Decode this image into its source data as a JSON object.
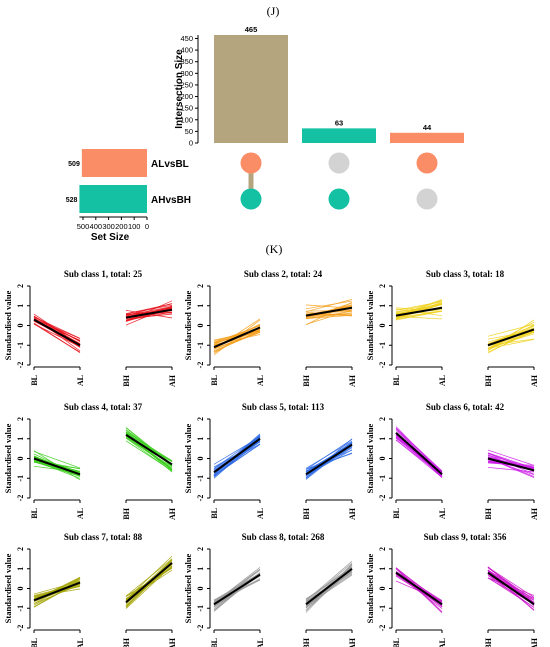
{
  "panel_labels": {
    "upset": "(J)",
    "subclasses": "(K)"
  },
  "colors": {
    "intersection_bars": [
      "#b5a57e",
      "#14c2a3",
      "#fa8c66"
    ],
    "set_alvsbl": "#fa8c66",
    "set_ahvsbh": "#14c2a3",
    "dot_inactive": "#d3d3d3",
    "connector": "#b5a57e",
    "mean_line": "#000000"
  },
  "chart_data": [
    {
      "type": "bar",
      "name": "upset-intersections",
      "categories": [
        "ALvsBL & AHvsBH",
        "AHvsBH only",
        "ALvsBL only"
      ],
      "values": [
        465,
        63,
        44
      ],
      "data_labels": [
        "465",
        "63",
        "44"
      ],
      "ylabel": "Intersection Size",
      "ylim": [
        0,
        465
      ],
      "yticks": [
        0,
        50,
        100,
        150,
        200,
        250,
        300,
        350,
        400,
        450
      ],
      "membership": [
        {
          "ALvsBL": true,
          "AHvsBH": true
        },
        {
          "ALvsBL": false,
          "AHvsBH": true
        },
        {
          "ALvsBL": true,
          "AHvsBH": false
        }
      ]
    },
    {
      "type": "bar",
      "name": "upset-set-sizes",
      "orientation": "horizontal",
      "categories": [
        "ALvsBL",
        "AHvsBH"
      ],
      "values": [
        509,
        528
      ],
      "data_labels": [
        "509",
        "528"
      ],
      "xlabel": "Set Size",
      "xticks": [
        "500",
        "400",
        "300",
        "200",
        "100",
        "0"
      ],
      "xlim": [
        0,
        528
      ]
    },
    {
      "type": "line",
      "name": "sub-classes",
      "x": [
        "BL",
        "AL",
        "BH",
        "AH"
      ],
      "ylabel": "Standardised value",
      "ylim": [
        -2,
        2
      ],
      "yticks": [
        "-2",
        "-1",
        "0",
        "1",
        "2"
      ],
      "panels": [
        {
          "title": "Sub class 1, total: 25",
          "color": "#e8141e",
          "mean": [
            0.3,
            -1.0,
            0.4,
            0.8
          ],
          "spread": 0.35
        },
        {
          "title": "Sub class 2, total: 24",
          "color": "#f5a01e",
          "mean": [
            -1.1,
            -0.1,
            0.5,
            0.9
          ],
          "spread": 0.35
        },
        {
          "title": "Sub class 3, total: 18",
          "color": "#f0d21e",
          "mean": [
            0.5,
            0.9,
            -1.0,
            -0.2
          ],
          "spread": 0.35
        },
        {
          "title": "Sub class 4, total: 37",
          "color": "#3ccf1e",
          "mean": [
            0.0,
            -0.8,
            1.2,
            -0.3
          ],
          "spread": 0.3
        },
        {
          "title": "Sub class 5, total: 113",
          "color": "#2f6be6",
          "mean": [
            -0.7,
            1.0,
            -0.8,
            0.7
          ],
          "spread": 0.3
        },
        {
          "title": "Sub class 6, total: 42",
          "color": "#cc1ee6",
          "mean": [
            1.3,
            -0.8,
            0.0,
            -0.6
          ],
          "spread": 0.3
        },
        {
          "title": "Sub class 7, total: 88",
          "color": "#a6a60a",
          "mean": [
            -0.6,
            0.3,
            -0.7,
            1.3
          ],
          "spread": 0.3
        },
        {
          "title": "Sub class 8, total: 268",
          "color": "#9a9a9a",
          "mean": [
            -0.8,
            0.7,
            -0.8,
            1.0
          ],
          "spread": 0.3
        },
        {
          "title": "Sub class 9, total: 356",
          "color": "#cc1acc",
          "mean": [
            0.8,
            -0.8,
            0.8,
            -0.8
          ],
          "spread": 0.3
        }
      ]
    }
  ]
}
